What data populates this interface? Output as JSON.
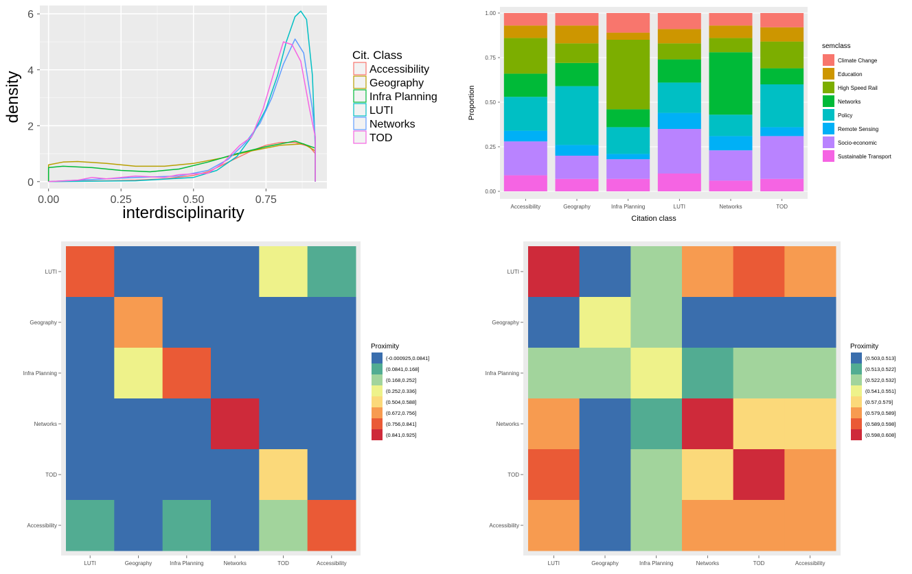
{
  "figure": {
    "panels": [
      "density",
      "stacked",
      "heatmap_left",
      "heatmap_right"
    ]
  },
  "chart_data": [
    {
      "id": "density",
      "type": "line",
      "xlabel": "interdisciplinarity",
      "ylabel": "density",
      "xlim": [
        -0.03,
        0.96
      ],
      "ylim": [
        -0.25,
        6.3
      ],
      "x_ticks": [
        "0.00",
        "0.25",
        "0.50",
        "0.75"
      ],
      "x_tick_values": [
        0,
        0.25,
        0.5,
        0.75
      ],
      "y_ticks": [
        "0",
        "2",
        "4",
        "6"
      ],
      "y_tick_values": [
        0,
        2,
        4,
        6
      ],
      "grid": true,
      "legend": {
        "title": "Cit. Class",
        "placement": "right",
        "entries": [
          "Accessibility",
          "Geography",
          "Infra Planning",
          "LUTI",
          "Networks",
          "TOD"
        ]
      },
      "series": [
        {
          "name": "Accessibility",
          "color": "#F8766D",
          "points": [
            [
              0,
              0
            ],
            [
              0.1,
              0.02
            ],
            [
              0.2,
              0.03
            ],
            [
              0.3,
              0.05
            ],
            [
              0.4,
              0.1
            ],
            [
              0.5,
              0.22
            ],
            [
              0.55,
              0.35
            ],
            [
              0.6,
              0.6
            ],
            [
              0.65,
              0.85
            ],
            [
              0.7,
              1.1
            ],
            [
              0.75,
              1.3
            ],
            [
              0.8,
              1.4
            ],
            [
              0.85,
              1.4
            ],
            [
              0.9,
              1.25
            ],
            [
              0.92,
              1.0
            ]
          ]
        },
        {
          "name": "Geography",
          "color": "#B79F00",
          "points": [
            [
              0,
              0.6
            ],
            [
              0.05,
              0.7
            ],
            [
              0.1,
              0.72
            ],
            [
              0.2,
              0.65
            ],
            [
              0.3,
              0.55
            ],
            [
              0.4,
              0.55
            ],
            [
              0.5,
              0.65
            ],
            [
              0.6,
              0.85
            ],
            [
              0.7,
              1.1
            ],
            [
              0.8,
              1.3
            ],
            [
              0.88,
              1.35
            ],
            [
              0.92,
              1.1
            ]
          ]
        },
        {
          "name": "Infra Planning",
          "color": "#00BA38",
          "points": [
            [
              0,
              0.5
            ],
            [
              0.05,
              0.55
            ],
            [
              0.15,
              0.5
            ],
            [
              0.25,
              0.4
            ],
            [
              0.35,
              0.35
            ],
            [
              0.45,
              0.45
            ],
            [
              0.55,
              0.7
            ],
            [
              0.65,
              1.0
            ],
            [
              0.75,
              1.25
            ],
            [
              0.85,
              1.45
            ],
            [
              0.92,
              1.2
            ]
          ]
        },
        {
          "name": "LUTI",
          "color": "#00BFC4",
          "points": [
            [
              0,
              0
            ],
            [
              0.3,
              0.03
            ],
            [
              0.5,
              0.15
            ],
            [
              0.58,
              0.4
            ],
            [
              0.65,
              0.9
            ],
            [
              0.7,
              1.6
            ],
            [
              0.75,
              2.6
            ],
            [
              0.79,
              3.8
            ],
            [
              0.82,
              5.0
            ],
            [
              0.85,
              5.9
            ],
            [
              0.87,
              6.1
            ],
            [
              0.89,
              5.8
            ],
            [
              0.91,
              3.8
            ],
            [
              0.92,
              1.2
            ]
          ]
        },
        {
          "name": "Networks",
          "color": "#619CFF",
          "points": [
            [
              0,
              0
            ],
            [
              0.1,
              0.05
            ],
            [
              0.2,
              0.1
            ],
            [
              0.3,
              0.15
            ],
            [
              0.45,
              0.2
            ],
            [
              0.55,
              0.4
            ],
            [
              0.62,
              0.8
            ],
            [
              0.68,
              1.4
            ],
            [
              0.73,
              2.1
            ],
            [
              0.77,
              3.0
            ],
            [
              0.81,
              4.2
            ],
            [
              0.85,
              5.1
            ],
            [
              0.88,
              4.6
            ],
            [
              0.91,
              2.6
            ],
            [
              0.92,
              1.6
            ]
          ]
        },
        {
          "name": "TOD",
          "color": "#F564E3",
          "points": [
            [
              0,
              0
            ],
            [
              0.1,
              0.05
            ],
            [
              0.15,
              0.15
            ],
            [
              0.2,
              0.1
            ],
            [
              0.3,
              0.2
            ],
            [
              0.4,
              0.15
            ],
            [
              0.45,
              0.25
            ],
            [
              0.55,
              0.3
            ],
            [
              0.6,
              0.65
            ],
            [
              0.66,
              1.3
            ],
            [
              0.7,
              1.6
            ],
            [
              0.74,
              2.6
            ],
            [
              0.78,
              4.0
            ],
            [
              0.81,
              5.0
            ],
            [
              0.84,
              4.9
            ],
            [
              0.87,
              4.3
            ],
            [
              0.9,
              2.6
            ],
            [
              0.92,
              1.6
            ]
          ]
        }
      ]
    },
    {
      "id": "stacked",
      "type": "bar",
      "stacked": true,
      "xlabel": "Citation class",
      "ylabel": "Proportion",
      "ylim": [
        0,
        1
      ],
      "y_ticks": [
        "0.00",
        "0.25",
        "0.50",
        "0.75",
        "1.00"
      ],
      "y_tick_values": [
        0,
        0.25,
        0.5,
        0.75,
        1.0
      ],
      "categories": [
        "Accessibility",
        "Geography",
        "Infra Planning",
        "LUTI",
        "Networks",
        "TOD"
      ],
      "legend": {
        "title": "semclass",
        "placement": "right"
      },
      "series": [
        {
          "name": "Sustainable Transport",
          "color": "#F564E3",
          "values": [
            0.09,
            0.07,
            0.07,
            0.1,
            0.06,
            0.07
          ]
        },
        {
          "name": "Socio-economic",
          "color": "#B983FF",
          "values": [
            0.19,
            0.13,
            0.11,
            0.25,
            0.17,
            0.24
          ]
        },
        {
          "name": "Remote Sensing",
          "color": "#00B0F6",
          "values": [
            0.06,
            0.06,
            0.03,
            0.09,
            0.08,
            0.05
          ]
        },
        {
          "name": "Policy",
          "color": "#00BFC4",
          "values": [
            0.19,
            0.33,
            0.15,
            0.17,
            0.12,
            0.24
          ]
        },
        {
          "name": "Networks",
          "color": "#00BA38",
          "values": [
            0.13,
            0.13,
            0.1,
            0.13,
            0.35,
            0.09
          ]
        },
        {
          "name": "High Speed Rail",
          "color": "#7CAE00",
          "values": [
            0.2,
            0.11,
            0.39,
            0.09,
            0.08,
            0.15
          ]
        },
        {
          "name": "Education",
          "color": "#CD9600",
          "values": [
            0.07,
            0.1,
            0.04,
            0.08,
            0.07,
            0.08
          ]
        },
        {
          "name": "Climate Change",
          "color": "#F8766D",
          "values": [
            0.07,
            0.07,
            0.11,
            0.09,
            0.07,
            0.08
          ]
        }
      ]
    },
    {
      "id": "heatmap_left",
      "type": "heatmap",
      "x_labels": [
        "LUTI",
        "Geography",
        "Infra Planning",
        "Networks",
        "TOD",
        "Accessibility"
      ],
      "y_labels": [
        "LUTI",
        "Geography",
        "Infra Planning",
        "Networks",
        "TOD",
        "Accessibility"
      ],
      "legend": {
        "title": "Proximity",
        "placement": "right",
        "bins": [
          "(-0.000925,0.0841]",
          "(0.0841,0.168]",
          "(0.168,0.252]",
          "(0.252,0.336]",
          "(0.504,0.588]",
          "(0.672,0.756]",
          "(0.756,0.841]",
          "(0.841,0.925]"
        ],
        "colors": [
          "#3A6EAD",
          "#52AC92",
          "#A2D49C",
          "#EEF28A",
          "#FBD97A",
          "#F79B50",
          "#EA5A36",
          "#CE2A3A"
        ]
      },
      "cells": [
        [
          6,
          0,
          0,
          0,
          3,
          1
        ],
        [
          0,
          5,
          0,
          0,
          0,
          0
        ],
        [
          0,
          3,
          6,
          0,
          0,
          0
        ],
        [
          0,
          0,
          0,
          7,
          0,
          0
        ],
        [
          0,
          0,
          0,
          0,
          4,
          0
        ],
        [
          1,
          0,
          1,
          0,
          2,
          6
        ]
      ]
    },
    {
      "id": "heatmap_right",
      "type": "heatmap",
      "x_labels": [
        "LUTI",
        "Geography",
        "Infra Planning",
        "Networks",
        "TOD",
        "Accessibility"
      ],
      "y_labels": [
        "LUTI",
        "Geography",
        "Infra Planning",
        "Networks",
        "TOD",
        "Accessibility"
      ],
      "legend": {
        "title": "Proximity",
        "placement": "right",
        "bins": [
          "(0.503,0.513]",
          "(0.513,0.522]",
          "(0.522,0.532]",
          "(0.541,0.551]",
          "(0.57,0.579]",
          "(0.579,0.589]",
          "(0.589,0.598]",
          "(0.598,0.608]"
        ],
        "colors": [
          "#3A6EAD",
          "#52AC92",
          "#A2D49C",
          "#EEF28A",
          "#FBD97A",
          "#F79B50",
          "#EA5A36",
          "#CE2A3A"
        ]
      },
      "cells": [
        [
          7,
          0,
          2,
          5,
          6,
          5
        ],
        [
          0,
          3,
          2,
          0,
          0,
          0
        ],
        [
          2,
          2,
          3,
          1,
          2,
          2
        ],
        [
          5,
          0,
          1,
          7,
          4,
          4
        ],
        [
          6,
          0,
          2,
          4,
          7,
          5
        ],
        [
          5,
          0,
          2,
          5,
          5,
          5
        ]
      ]
    }
  ]
}
